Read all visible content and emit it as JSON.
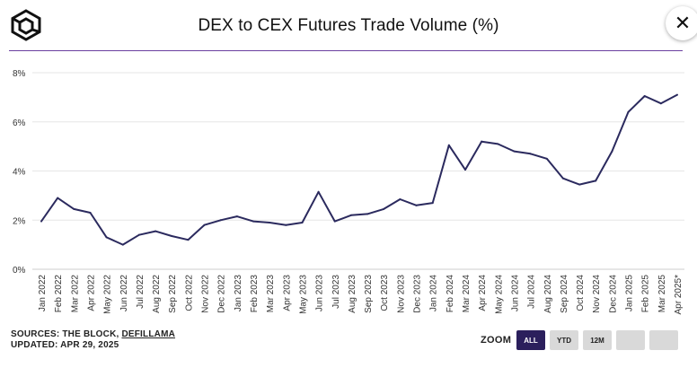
{
  "title": "DEX to CEX Futures Trade Volume (%)",
  "close_icon": "close-icon",
  "close_symbol": "✕",
  "logo_icon": "theblock-cube-logo",
  "colors": {
    "accent": "#6b3fa0",
    "line": "#2b2a5e",
    "grid": "#e6e6e6",
    "zoom_active": "#2b1f5c",
    "zoom_inactive": "#d9d9d9"
  },
  "sources": {
    "prefix": "SOURCES: THE BLOCK, ",
    "link": "DEFILLAMA",
    "updated": "UPDATED: APR 29, 2025"
  },
  "zoom": {
    "label": "ZOOM",
    "buttons": [
      {
        "label": "ALL",
        "active": true
      },
      {
        "label": "YTD",
        "active": false
      },
      {
        "label": "12M",
        "active": false
      },
      {
        "label": "",
        "active": false
      },
      {
        "label": "",
        "active": false
      }
    ]
  },
  "chart_data": {
    "type": "line",
    "title": "DEX to CEX Futures Trade Volume (%)",
    "xlabel": "",
    "ylabel": "",
    "ylim": [
      0,
      8
    ],
    "yticks": [
      "0%",
      "2%",
      "4%",
      "6%",
      "8%"
    ],
    "grid": true,
    "categories": [
      "Jan 2022",
      "Feb 2022",
      "Mar 2022",
      "Apr 2022",
      "May 2022",
      "Jun 2022",
      "Jul 2022",
      "Aug 2022",
      "Sep 2022",
      "Oct 2022",
      "Nov 2022",
      "Dec 2022",
      "Jan 2023",
      "Feb 2023",
      "Mar 2023",
      "Apr 2023",
      "May 2023",
      "Jun 2023",
      "Jul 2023",
      "Aug 2023",
      "Sep 2023",
      "Oct 2023",
      "Nov 2023",
      "Dec 2023",
      "Jan 2024",
      "Feb 2024",
      "Mar 2024",
      "Apr 2024",
      "May 2024",
      "Jun 2024",
      "Jul 2024",
      "Aug 2024",
      "Sep 2024",
      "Oct 2024",
      "Nov 2024",
      "Dec 2024",
      "Jan 2025",
      "Feb 2025",
      "Mar 2025",
      "Apr 2025*"
    ],
    "series": [
      {
        "values": [
          1.95,
          2.9,
          2.45,
          2.3,
          1.3,
          1.0,
          1.4,
          1.55,
          1.35,
          1.2,
          1.8,
          2.0,
          2.15,
          1.95,
          1.9,
          1.8,
          1.9,
          3.15,
          1.95,
          2.2,
          2.25,
          2.45,
          2.85,
          2.6,
          2.7,
          5.05,
          4.05,
          5.2,
          5.1,
          4.8,
          4.7,
          4.5,
          3.7,
          3.45,
          3.6,
          4.8,
          6.4,
          7.05,
          6.75,
          7.1
        ]
      }
    ]
  }
}
